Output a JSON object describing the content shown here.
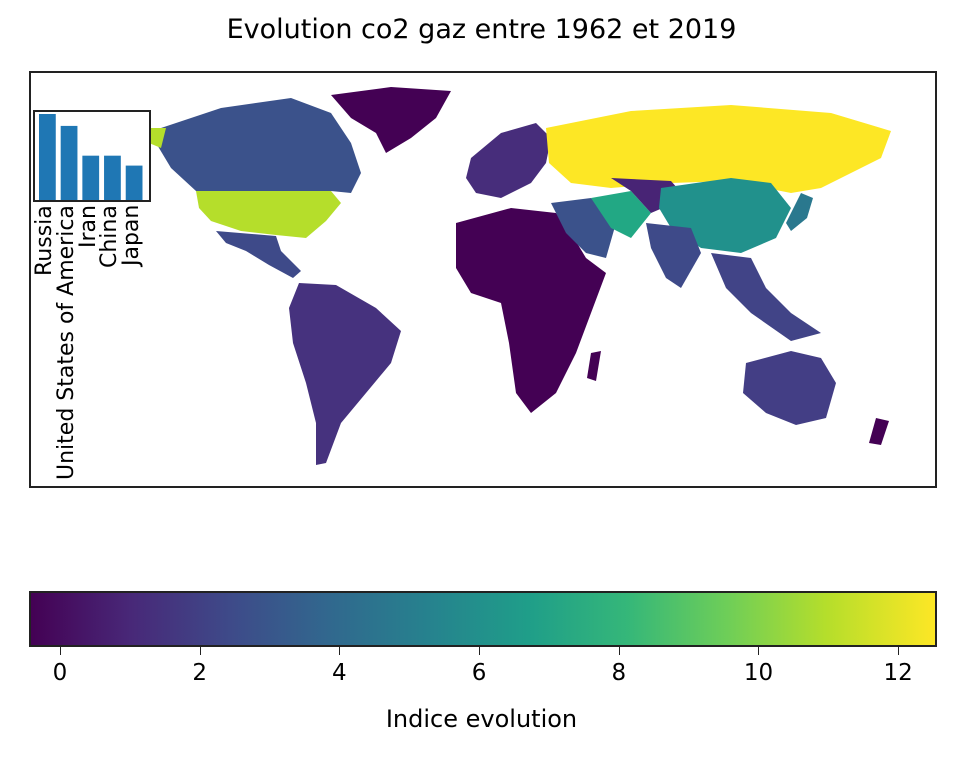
{
  "title": "Evolution co2 gaz entre 1962 et 2019",
  "colorbar": {
    "label": "Indice evolution",
    "ticks": [
      "0",
      "2",
      "4",
      "6",
      "8",
      "10",
      "12"
    ],
    "range": [
      0,
      13
    ],
    "colormap": "viridis",
    "colors": [
      "#440154",
      "#3e4a89",
      "#26828e",
      "#35b779",
      "#b5de2b",
      "#fde725"
    ]
  },
  "inset_chart": {
    "type": "bar",
    "categories": [
      "Russia",
      "United States of America",
      "Iran",
      "China",
      "Japan"
    ],
    "values": [
      13,
      11.2,
      6.7,
      6.7,
      5.2
    ],
    "bar_color": "#1f77b4"
  },
  "map_regions": [
    {
      "name": "Russia",
      "value": 13
    },
    {
      "name": "United States of America",
      "value": 11.2
    },
    {
      "name": "China",
      "value": 6.7
    },
    {
      "name": "Iran",
      "value": 6.7
    },
    {
      "name": "Japan",
      "value": 5.2
    },
    {
      "name": "Canada",
      "value": 3.5
    },
    {
      "name": "Australia",
      "value": 1.8
    },
    {
      "name": "Africa",
      "value": 0.3
    },
    {
      "name": "South America",
      "value": 1.2
    }
  ]
}
